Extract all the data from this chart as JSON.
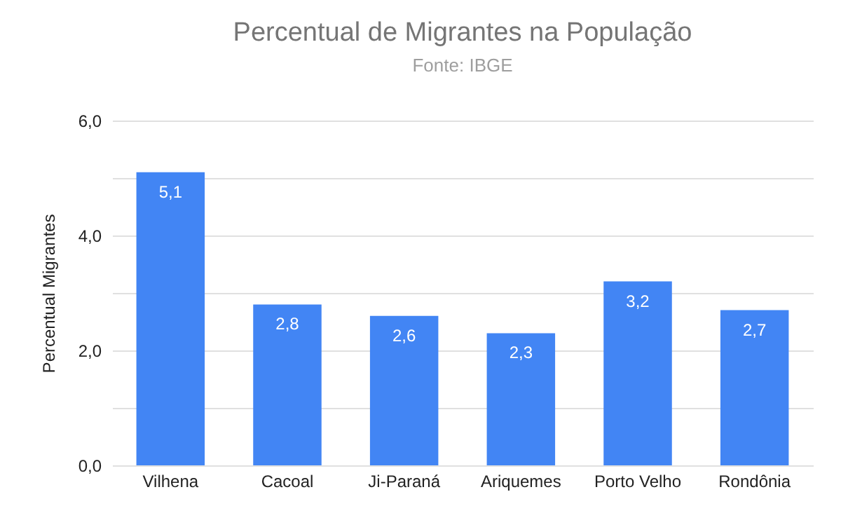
{
  "chart_data": {
    "type": "bar",
    "title": "Percentual de Migrantes na População",
    "subtitle": "Fonte: IBGE",
    "ylabel": "Percentual Migrantes",
    "categories": [
      "Vilhena",
      "Cacoal",
      "Ji-Paraná",
      "Ariquemes",
      "Porto Velho",
      "Rondônia"
    ],
    "values": [
      5.1,
      2.8,
      2.6,
      2.3,
      3.2,
      2.7
    ],
    "value_labels": [
      "5,1",
      "2,8",
      "2,6",
      "2,3",
      "3,2",
      "2,7"
    ],
    "color": "#4285f4",
    "ylim": [
      0,
      6
    ],
    "yticks": [
      {
        "value": 0,
        "label": "0,0"
      },
      {
        "value": 1,
        "label": null
      },
      {
        "value": 2,
        "label": "2,0"
      },
      {
        "value": 3,
        "label": null
      },
      {
        "value": 4,
        "label": "4,0"
      },
      {
        "value": 5,
        "label": null
      },
      {
        "value": 6,
        "label": "6,0"
      }
    ],
    "grid": "y"
  }
}
